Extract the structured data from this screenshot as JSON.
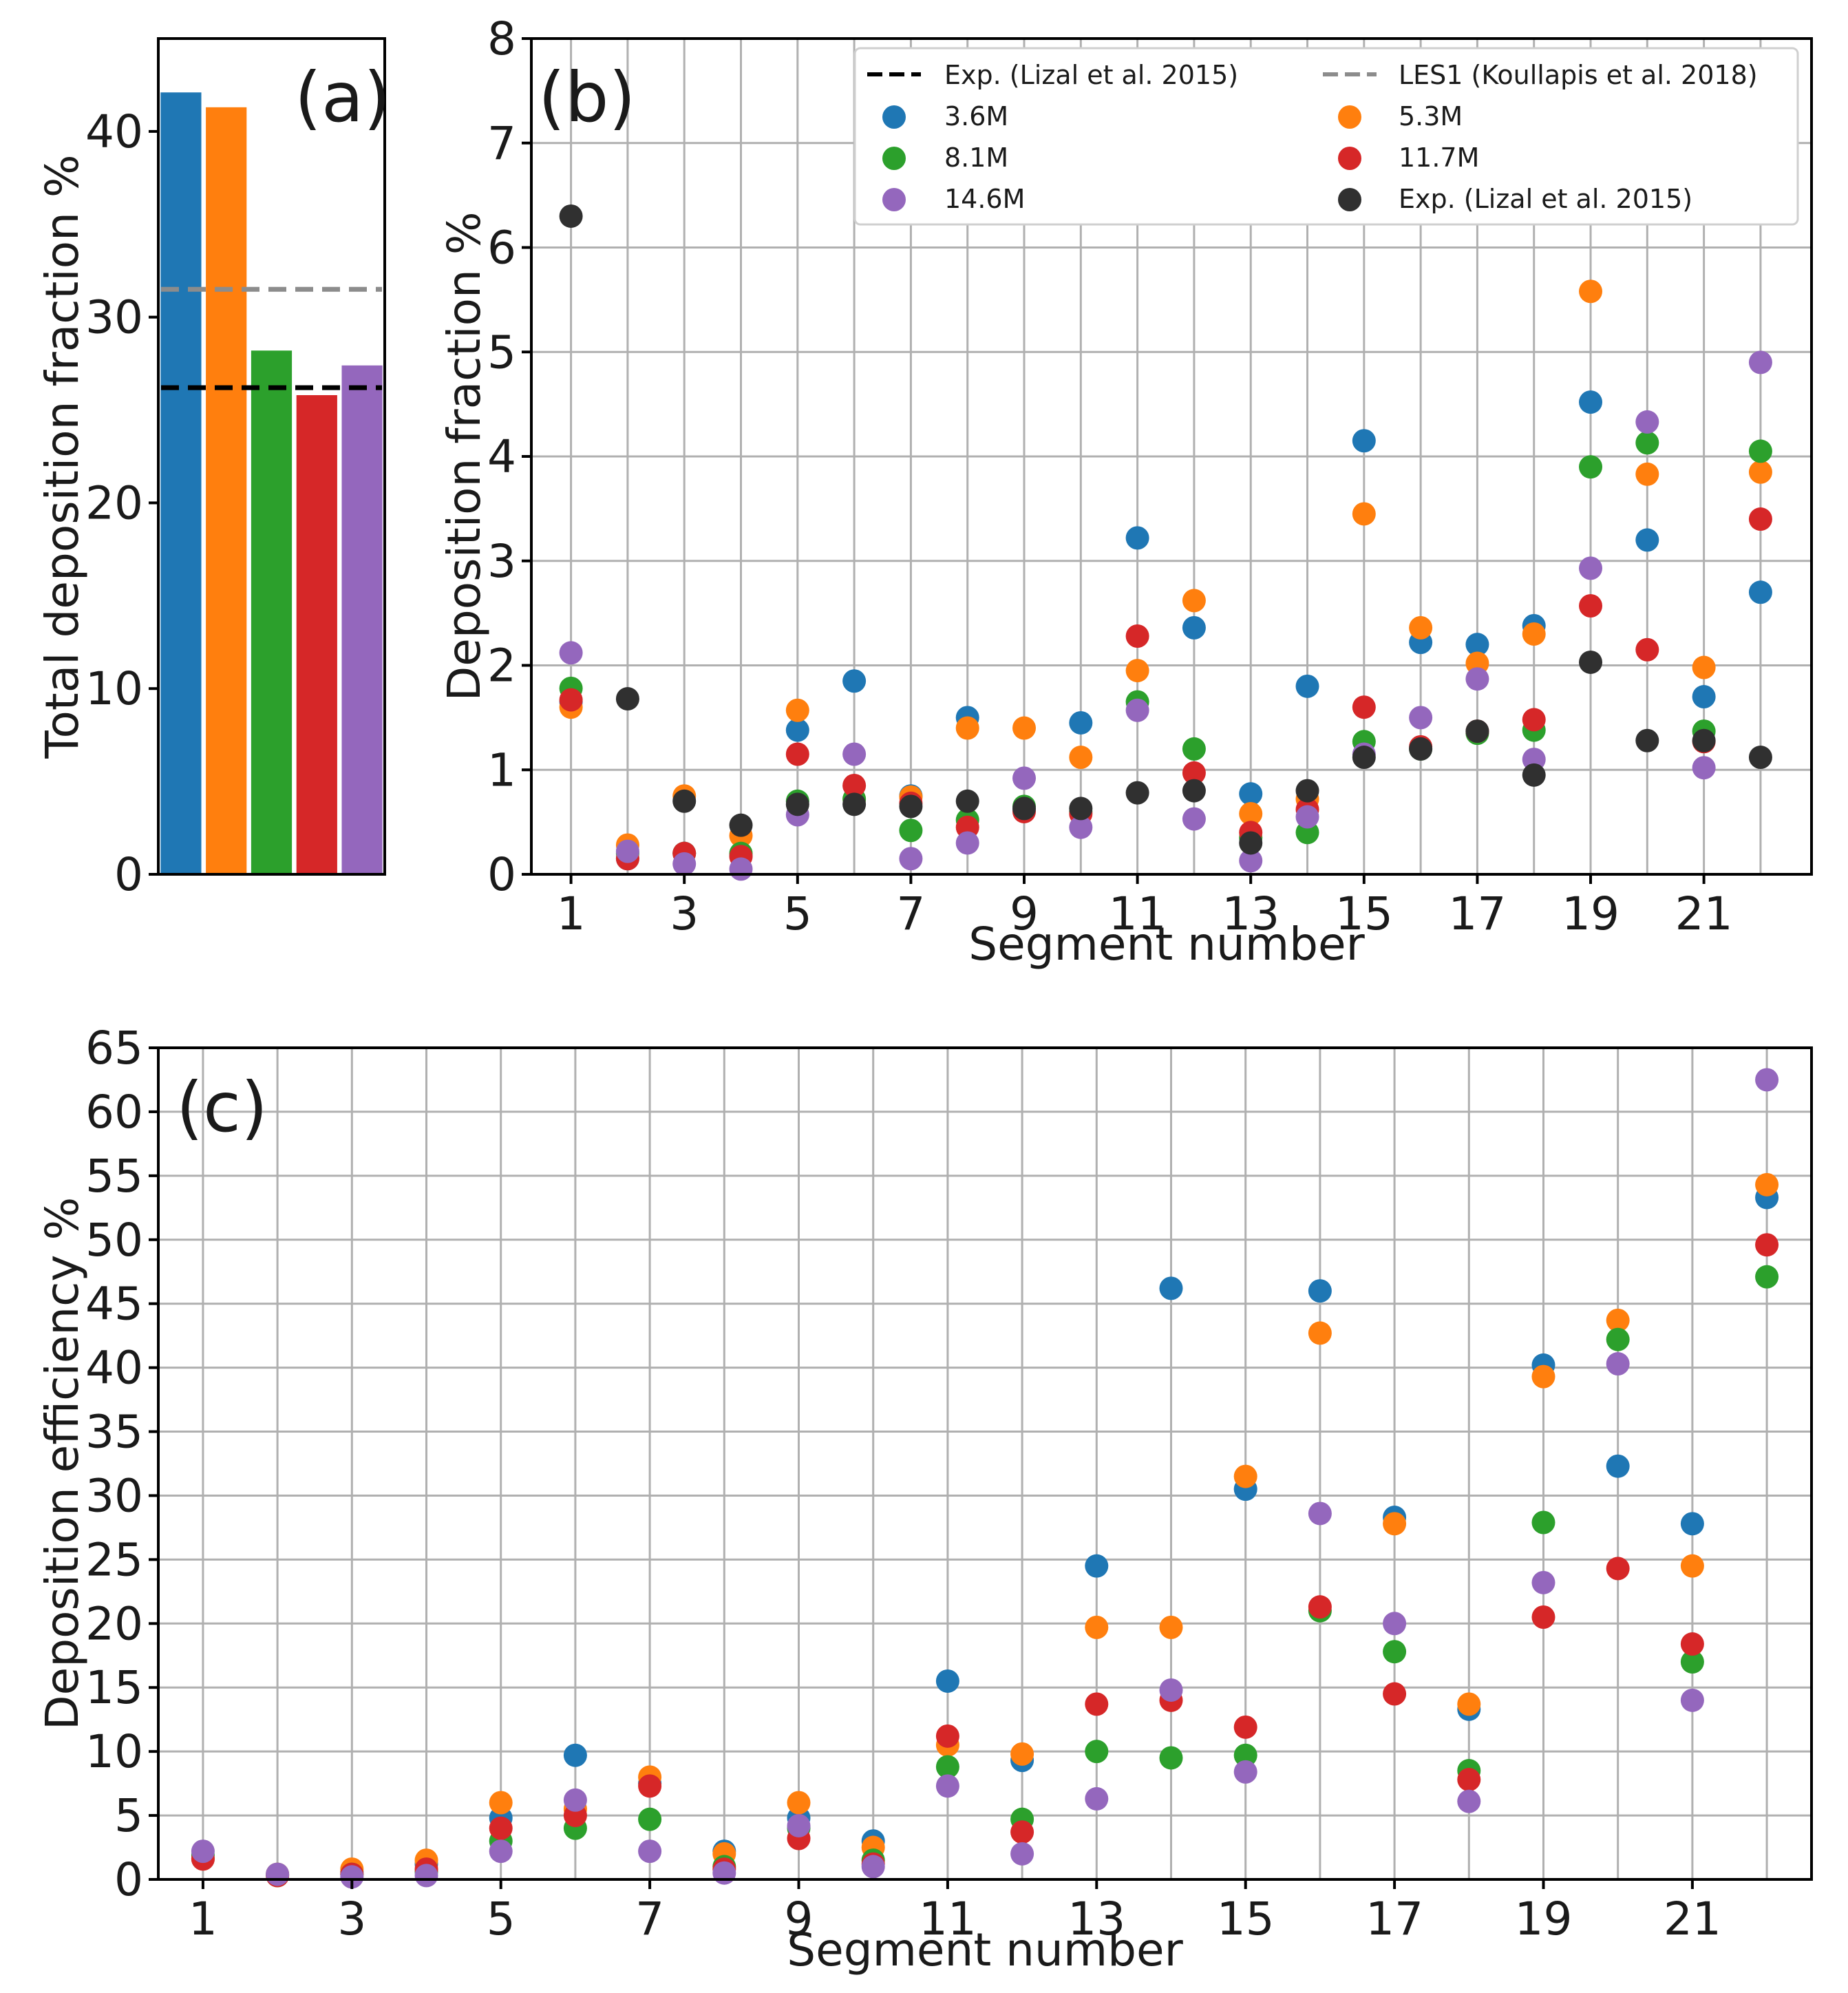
{
  "colors": {
    "c3_6M": "#1f77b4",
    "c5_3M": "#ff7f0e",
    "c8_1M": "#2ca02c",
    "c11_7M": "#d62728",
    "c14_6M": "#9467bd",
    "exp": "#303030",
    "les_line": "#8c8c8c",
    "exp_line": "#000000",
    "grid": "#b0b0b0"
  },
  "chart_data": [
    {
      "id": "a",
      "type": "bar",
      "panel_label": "(a)",
      "ylabel": "Total deposition fraction %",
      "xlabel": "",
      "ylim": [
        0,
        45
      ],
      "yticks": [
        0,
        10,
        20,
        30,
        40
      ],
      "categories": [
        "3.6M",
        "5.3M",
        "8.1M",
        "11.7M",
        "14.6M"
      ],
      "values": [
        42.1,
        41.3,
        28.2,
        25.8,
        27.4
      ],
      "bar_colors": [
        "#1f77b4",
        "#ff7f0e",
        "#2ca02c",
        "#d62728",
        "#9467bd"
      ],
      "reference_lines": [
        {
          "name": "LES1 (Koullapis et al. 2018)",
          "value": 31.5,
          "color": "#8c8c8c",
          "style": "dashed"
        },
        {
          "name": "Exp. (Lizal et al. 2015)",
          "value": 26.2,
          "color": "#000000",
          "style": "dashed"
        }
      ],
      "grid": false
    },
    {
      "id": "b",
      "type": "scatter",
      "panel_label": "(b)",
      "title": "",
      "xlabel": "Segment number",
      "ylabel": "Deposition fraction %",
      "xlim": [
        0.3,
        22.9
      ],
      "ylim": [
        0,
        8
      ],
      "xticks": [
        1,
        3,
        5,
        7,
        9,
        11,
        13,
        15,
        17,
        19,
        21
      ],
      "yticks": [
        0,
        1,
        2,
        3,
        4,
        5,
        6,
        7,
        8
      ],
      "grid": true,
      "legend_position": "top-right",
      "legend": [
        {
          "label": "Exp. (Lizal et al. 2015)",
          "kind": "dashed-line",
          "color": "#000000"
        },
        {
          "label": "LES1 (Koullapis et al. 2018)",
          "kind": "dashed-line",
          "color": "#8c8c8c"
        },
        {
          "label": "3.6M",
          "kind": "marker",
          "color": "#1f77b4"
        },
        {
          "label": "5.3M",
          "kind": "marker",
          "color": "#ff7f0e"
        },
        {
          "label": "8.1M",
          "kind": "marker",
          "color": "#2ca02c"
        },
        {
          "label": "11.7M",
          "kind": "marker",
          "color": "#d62728"
        },
        {
          "label": "14.6M",
          "kind": "marker",
          "color": "#9467bd"
        },
        {
          "label": "Exp. (Lizal et al. 2015)",
          "kind": "marker",
          "color": "#303030"
        }
      ],
      "x": [
        1,
        2,
        3,
        4,
        5,
        6,
        7,
        8,
        9,
        10,
        11,
        12,
        13,
        14,
        15,
        16,
        17,
        18,
        19,
        20,
        21,
        22
      ],
      "series": [
        {
          "name": "3.6M",
          "color": "#1f77b4",
          "values": [
            1.65,
            0.15,
            0.2,
            0.18,
            1.38,
            1.85,
            0.75,
            1.5,
            0.62,
            1.45,
            3.22,
            2.36,
            0.77,
            1.8,
            4.15,
            2.22,
            2.2,
            2.38,
            4.52,
            3.2,
            1.7,
            2.7
          ]
        },
        {
          "name": "5.3M",
          "color": "#ff7f0e",
          "values": [
            1.6,
            0.28,
            0.75,
            0.37,
            1.57,
            0.72,
            0.74,
            1.4,
            1.4,
            1.12,
            1.95,
            2.62,
            0.58,
            0.72,
            3.45,
            2.36,
            2.02,
            2.3,
            5.58,
            3.83,
            1.98,
            3.85
          ]
        },
        {
          "name": "8.1M",
          "color": "#2ca02c",
          "values": [
            1.78,
            0.2,
            0.2,
            0.2,
            0.7,
            0.72,
            0.42,
            0.52,
            0.65,
            0.6,
            1.65,
            1.2,
            0.35,
            0.4,
            1.27,
            1.2,
            1.35,
            1.38,
            3.9,
            4.13,
            1.37,
            4.05
          ]
        },
        {
          "name": "11.7M",
          "color": "#d62728",
          "values": [
            1.67,
            0.15,
            0.2,
            0.17,
            1.15,
            0.85,
            0.68,
            0.45,
            0.6,
            0.58,
            2.28,
            0.97,
            0.4,
            0.62,
            1.6,
            1.22,
            1.37,
            1.48,
            2.57,
            2.15,
            1.27,
            3.4
          ]
        },
        {
          "name": "14.6M",
          "color": "#9467bd",
          "values": [
            2.12,
            0.22,
            0.1,
            0.05,
            0.57,
            1.15,
            0.15,
            0.3,
            0.92,
            0.45,
            1.57,
            0.53,
            0.13,
            0.55,
            1.15,
            1.5,
            1.87,
            1.1,
            2.93,
            4.33,
            1.02,
            4.9
          ]
        },
        {
          "name": "Exp. (Lizal et al. 2015)",
          "color": "#303030",
          "values": [
            6.3,
            1.68,
            0.7,
            0.47,
            0.67,
            0.67,
            0.65,
            0.7,
            0.63,
            0.63,
            0.78,
            0.8,
            0.3,
            0.8,
            1.12,
            1.2,
            1.37,
            0.95,
            2.03,
            1.28,
            1.28,
            1.12
          ]
        }
      ]
    },
    {
      "id": "c",
      "type": "scatter",
      "panel_label": "(c)",
      "title": "",
      "xlabel": "Segment number",
      "ylabel": "Deposition efficiency %",
      "xlim": [
        0.4,
        22.6
      ],
      "ylim": [
        0,
        65
      ],
      "xticks": [
        1,
        3,
        5,
        7,
        9,
        11,
        13,
        15,
        17,
        19,
        21
      ],
      "yticks": [
        0,
        5,
        10,
        15,
        20,
        25,
        30,
        35,
        40,
        45,
        50,
        55,
        60,
        65
      ],
      "grid": true,
      "x": [
        1,
        2,
        3,
        4,
        5,
        6,
        7,
        8,
        9,
        10,
        11,
        12,
        13,
        14,
        15,
        16,
        17,
        18,
        19,
        20,
        21,
        22
      ],
      "series": [
        {
          "name": "3.6M",
          "color": "#1f77b4",
          "values": [
            1.6,
            0.4,
            0.6,
            1.2,
            4.8,
            9.7,
            7.5,
            2.2,
            4.8,
            3.0,
            15.5,
            9.3,
            24.5,
            46.2,
            30.5,
            46.0,
            28.3,
            13.3,
            40.2,
            32.3,
            27.8,
            53.3
          ]
        },
        {
          "name": "5.3M",
          "color": "#ff7f0e",
          "values": [
            1.6,
            0.4,
            0.8,
            1.5,
            6.0,
            5.5,
            8.0,
            2.0,
            6.0,
            2.5,
            10.5,
            9.8,
            19.7,
            19.7,
            31.5,
            42.7,
            27.8,
            13.7,
            39.3,
            43.7,
            24.5,
            54.3
          ]
        },
        {
          "name": "8.1M",
          "color": "#2ca02c",
          "values": [
            1.9,
            0.3,
            0.4,
            0.6,
            3.0,
            4.0,
            4.7,
            1.0,
            4.0,
            1.5,
            8.8,
            4.7,
            10.0,
            9.5,
            9.7,
            21.0,
            17.8,
            8.5,
            27.9,
            42.2,
            17.0,
            47.1
          ]
        },
        {
          "name": "11.7M",
          "color": "#d62728",
          "values": [
            1.6,
            0.3,
            0.4,
            0.8,
            4.0,
            5.0,
            7.3,
            0.8,
            3.2,
            1.2,
            11.2,
            3.7,
            13.7,
            14.0,
            11.9,
            21.3,
            14.5,
            7.8,
            20.5,
            24.3,
            18.4,
            49.6
          ]
        },
        {
          "name": "14.6M",
          "color": "#9467bd",
          "values": [
            2.2,
            0.4,
            0.2,
            0.3,
            2.2,
            6.2,
            2.2,
            0.5,
            4.2,
            1.0,
            7.3,
            2.0,
            6.3,
            14.8,
            8.4,
            28.6,
            20.0,
            6.1,
            23.2,
            40.3,
            14.0,
            62.5
          ]
        }
      ]
    }
  ]
}
